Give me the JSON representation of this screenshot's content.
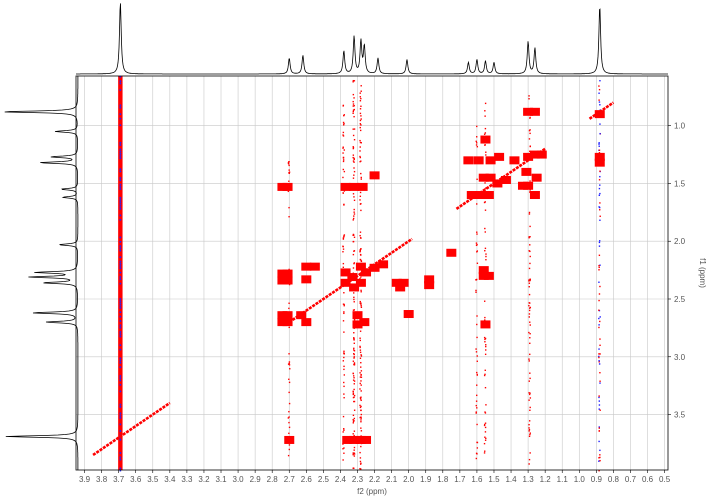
{
  "chart_data": {
    "type": "scatter",
    "title": "",
    "subtitle": "",
    "xlabel": "f2 (ppm)",
    "ylabel": "f1 (ppm)",
    "x_axis_reversed": true,
    "y_axis_increases_downward": true,
    "xlim": [
      3.95,
      0.48
    ],
    "ylim": [
      0.57,
      3.98
    ],
    "x_ticks": [
      3.9,
      3.8,
      3.7,
      3.6,
      3.5,
      3.4,
      3.3,
      3.2,
      3.1,
      3.0,
      2.9,
      2.8,
      2.7,
      2.6,
      2.5,
      2.4,
      2.3,
      2.2,
      2.1,
      2.0,
      1.9,
      1.8,
      1.7,
      1.6,
      1.5,
      1.4,
      1.3,
      1.2,
      1.1,
      1.0,
      0.9,
      0.8,
      0.7,
      0.6,
      0.5
    ],
    "y_ticks": [
      1.0,
      1.5,
      2.0,
      2.5,
      3.0,
      3.5
    ],
    "vertical_grid": true,
    "horizontal_grid": true,
    "colors": {
      "peak": "#ff0000",
      "t1_noise": "#2020ff",
      "grid": "#c8c8c8",
      "frame": "#000000",
      "projection": "#000000",
      "tick_label": "#555555"
    },
    "f2_projection_peaks_ppm": [
      {
        "shift": 3.69,
        "intensity": 1.0
      },
      {
        "shift": 2.7,
        "intensity": 0.22
      },
      {
        "shift": 2.62,
        "intensity": 0.26
      },
      {
        "shift": 2.38,
        "intensity": 0.32
      },
      {
        "shift": 2.32,
        "intensity": 0.52
      },
      {
        "shift": 2.28,
        "intensity": 0.45
      },
      {
        "shift": 2.26,
        "intensity": 0.38
      },
      {
        "shift": 2.18,
        "intensity": 0.22
      },
      {
        "shift": 2.01,
        "intensity": 0.2
      },
      {
        "shift": 1.65,
        "intensity": 0.16
      },
      {
        "shift": 1.6,
        "intensity": 0.2
      },
      {
        "shift": 1.55,
        "intensity": 0.18
      },
      {
        "shift": 1.5,
        "intensity": 0.16
      },
      {
        "shift": 1.3,
        "intensity": 0.45
      },
      {
        "shift": 1.26,
        "intensity": 0.36
      },
      {
        "shift": 0.88,
        "intensity": 0.95
      }
    ],
    "f1_projection_peaks_ppm": [
      {
        "shift": 0.88,
        "intensity": 1.0
      },
      {
        "shift": 1.05,
        "intensity": 0.3
      },
      {
        "shift": 1.27,
        "intensity": 0.35
      },
      {
        "shift": 1.32,
        "intensity": 0.5
      },
      {
        "shift": 1.55,
        "intensity": 0.22
      },
      {
        "shift": 1.62,
        "intensity": 0.2
      },
      {
        "shift": 2.03,
        "intensity": 0.25
      },
      {
        "shift": 2.27,
        "intensity": 0.55
      },
      {
        "shift": 2.31,
        "intensity": 0.62
      },
      {
        "shift": 2.36,
        "intensity": 0.45
      },
      {
        "shift": 2.62,
        "intensity": 0.6
      },
      {
        "shift": 2.7,
        "intensity": 0.42
      },
      {
        "shift": 3.69,
        "intensity": 0.95
      }
    ],
    "cross_peaks": [
      {
        "x": 2.74,
        "y": 1.53
      },
      {
        "x": 2.71,
        "y": 1.53
      },
      {
        "x": 2.37,
        "y": 1.53
      },
      {
        "x": 2.32,
        "y": 1.53
      },
      {
        "x": 2.27,
        "y": 1.53
      },
      {
        "x": 2.2,
        "y": 1.43
      },
      {
        "x": 2.74,
        "y": 2.28
      },
      {
        "x": 2.71,
        "y": 2.28
      },
      {
        "x": 2.74,
        "y": 2.34
      },
      {
        "x": 2.71,
        "y": 2.34
      },
      {
        "x": 2.6,
        "y": 2.22
      },
      {
        "x": 2.55,
        "y": 2.22
      },
      {
        "x": 2.6,
        "y": 2.33
      },
      {
        "x": 2.74,
        "y": 2.64
      },
      {
        "x": 2.71,
        "y": 2.64
      },
      {
        "x": 2.74,
        "y": 2.7
      },
      {
        "x": 2.71,
        "y": 2.7
      },
      {
        "x": 2.63,
        "y": 2.64
      },
      {
        "x": 2.6,
        "y": 2.7
      },
      {
        "x": 2.37,
        "y": 2.27
      },
      {
        "x": 2.33,
        "y": 2.31
      },
      {
        "x": 2.28,
        "y": 2.36
      },
      {
        "x": 2.25,
        "y": 2.27
      },
      {
        "x": 2.2,
        "y": 2.23
      },
      {
        "x": 2.37,
        "y": 2.36
      },
      {
        "x": 2.32,
        "y": 2.4
      },
      {
        "x": 2.28,
        "y": 2.22
      },
      {
        "x": 2.15,
        "y": 2.2
      },
      {
        "x": 2.03,
        "y": 2.36
      },
      {
        "x": 2.3,
        "y": 2.64
      },
      {
        "x": 2.26,
        "y": 2.7
      },
      {
        "x": 2.3,
        "y": 2.72
      },
      {
        "x": 2.07,
        "y": 2.36
      },
      {
        "x": 2.05,
        "y": 2.4
      },
      {
        "x": 1.88,
        "y": 2.33
      },
      {
        "x": 1.88,
        "y": 2.38
      },
      {
        "x": 1.75,
        "y": 2.1
      },
      {
        "x": 1.63,
        "y": 1.6
      },
      {
        "x": 1.58,
        "y": 1.6
      },
      {
        "x": 1.53,
        "y": 1.6
      },
      {
        "x": 1.48,
        "y": 1.5
      },
      {
        "x": 1.43,
        "y": 1.47
      },
      {
        "x": 1.65,
        "y": 1.3
      },
      {
        "x": 1.59,
        "y": 1.3
      },
      {
        "x": 1.52,
        "y": 1.3
      },
      {
        "x": 1.47,
        "y": 1.27
      },
      {
        "x": 1.38,
        "y": 1.3
      },
      {
        "x": 1.56,
        "y": 1.45
      },
      {
        "x": 1.52,
        "y": 1.45
      },
      {
        "x": 1.3,
        "y": 1.52
      },
      {
        "x": 1.26,
        "y": 1.6
      },
      {
        "x": 1.33,
        "y": 1.52
      },
      {
        "x": 1.31,
        "y": 1.4
      },
      {
        "x": 1.25,
        "y": 1.45
      },
      {
        "x": 1.3,
        "y": 0.88
      },
      {
        "x": 1.26,
        "y": 0.88
      },
      {
        "x": 1.3,
        "y": 1.27
      },
      {
        "x": 1.26,
        "y": 1.25
      },
      {
        "x": 1.22,
        "y": 1.25
      },
      {
        "x": 1.56,
        "y": 2.3
      },
      {
        "x": 1.53,
        "y": 2.3
      },
      {
        "x": 1.56,
        "y": 2.25
      },
      {
        "x": 1.55,
        "y": 2.72
      },
      {
        "x": 1.55,
        "y": 1.12
      },
      {
        "x": 0.88,
        "y": 1.27
      },
      {
        "x": 0.88,
        "y": 1.32
      },
      {
        "x": 0.88,
        "y": 0.9
      },
      {
        "x": 2.7,
        "y": 3.72
      },
      {
        "x": 2.36,
        "y": 3.72
      },
      {
        "x": 2.32,
        "y": 3.72
      },
      {
        "x": 2.28,
        "y": 3.72
      },
      {
        "x": 2.25,
        "y": 3.72
      },
      {
        "x": 2.0,
        "y": 2.63
      }
    ],
    "diagonal_segments": [
      {
        "x1": 3.85,
        "y1": 3.85,
        "x2": 3.4,
        "y2": 3.4
      },
      {
        "x1": 2.72,
        "y1": 2.72,
        "x2": 1.98,
        "y2": 1.98
      },
      {
        "x1": 1.72,
        "y1": 1.72,
        "x2": 1.2,
        "y2": 1.2
      },
      {
        "x1": 0.94,
        "y1": 0.94,
        "x2": 0.8,
        "y2": 0.8
      }
    ],
    "t1_noise_streaks": [
      {
        "x": 3.69,
        "from": 0.57,
        "to": 3.98,
        "strength": 1.0
      },
      {
        "x": 2.32,
        "from": 0.6,
        "to": 3.98,
        "strength": 0.6
      },
      {
        "x": 2.28,
        "from": 0.6,
        "to": 3.98,
        "strength": 0.6
      },
      {
        "x": 2.38,
        "from": 0.8,
        "to": 3.98,
        "strength": 0.35
      },
      {
        "x": 2.7,
        "from": 1.3,
        "to": 3.9,
        "strength": 0.25
      },
      {
        "x": 1.55,
        "from": 0.8,
        "to": 3.98,
        "strength": 0.3
      },
      {
        "x": 1.6,
        "from": 1.0,
        "to": 3.9,
        "strength": 0.25
      },
      {
        "x": 1.29,
        "from": 0.7,
        "to": 3.98,
        "strength": 0.35
      },
      {
        "x": 0.88,
        "from": 0.6,
        "to": 3.98,
        "strength": 0.4
      }
    ]
  }
}
